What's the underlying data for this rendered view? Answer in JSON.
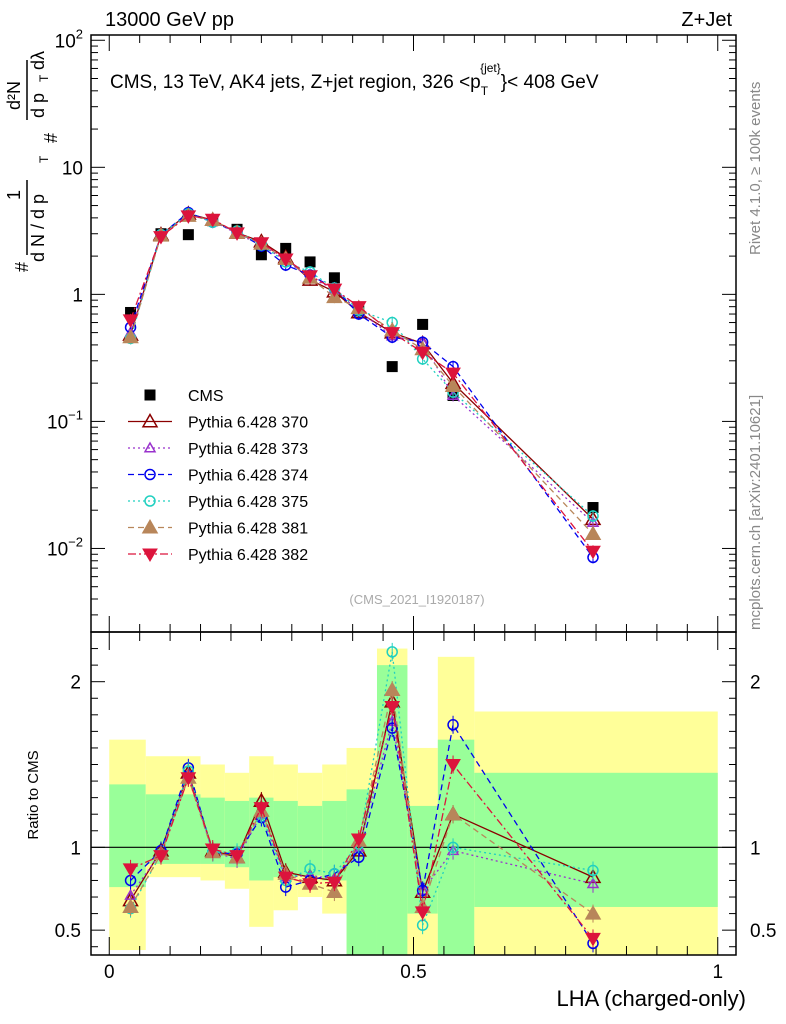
{
  "header": {
    "left": "13000 GeV pp",
    "right": "Z+Jet"
  },
  "side_labels": {
    "rivet": "Rivet 4.1.0, ≥ 100k events",
    "source": "mcplots.cern.ch [arXiv:2401.10621]"
  },
  "colors": {
    "cms": "#000000",
    "p370": "#8b0000",
    "p373": "#9932cc",
    "p374": "#0000ee",
    "p375": "#20d0c0",
    "p381": "#b8865a",
    "p382": "#dc143c",
    "band_inner": "#99ff99",
    "band_outer": "#ffff99"
  },
  "chart_data": [
    {
      "type": "line",
      "scale": "log",
      "title": "CMS, 13 TeV, AK4 jets, Z+jet region, 326 <p_T^{jet}< 408 GeV",
      "title_parts": {
        "prefix": "CMS, 13 TeV, AK4 jets, Z+jet region, 326 <p",
        "sub": "T",
        "sup": "{jet}",
        "suffix": "}< 408 GeV"
      },
      "ylabel": "1/dN/dp_T  d²N/dp_T dλ",
      "ylabel_parts": {
        "hash": "#",
        "one": "1",
        "lower": "d N / d p",
        "sub": "T",
        "upper": "d²N",
        "lower2": "d p",
        "sub2": "T",
        "dl": "dλ"
      },
      "ylim": [
        0.0022,
        110
      ],
      "yticks": [
        {
          "value": 0.01,
          "base": "10",
          "exp": "−2"
        },
        {
          "value": 0.1,
          "base": "10",
          "exp": "−1"
        },
        {
          "value": 1,
          "base": "1",
          "exp": ""
        },
        {
          "value": 10,
          "base": "10",
          "exp": ""
        },
        {
          "value": 100,
          "base": "10",
          "exp": "2"
        }
      ],
      "watermark": "(CMS_2021_I1920187)",
      "x": [
        0.035,
        0.085,
        0.13,
        0.17,
        0.21,
        0.25,
        0.29,
        0.33,
        0.37,
        0.41,
        0.465,
        0.515,
        0.565,
        0.795
      ],
      "series": [
        {
          "name": "CMS",
          "key": "cms",
          "style": "data",
          "values": [
            0.72,
            3.0,
            2.95,
            3.8,
            3.25,
            2.05,
            2.3,
            1.8,
            1.35,
            0.74,
            0.27,
            0.58,
            0.16,
            0.021
          ]
        },
        {
          "name": "Pythia 6.428 370",
          "key": "p370",
          "style": "solid",
          "marker": "tri-up-open",
          "values": [
            0.48,
            2.95,
            4.3,
            3.85,
            3.05,
            2.6,
            1.95,
            1.3,
            1.05,
            0.72,
            0.5,
            0.41,
            0.2,
            0.017
          ]
        },
        {
          "name": "Pythia 6.428 373",
          "key": "p373",
          "style": "dotted",
          "marker": "tri-up-open-small",
          "values": [
            0.5,
            2.9,
            4.25,
            3.8,
            3.0,
            2.45,
            1.85,
            1.35,
            1.1,
            0.74,
            0.47,
            0.42,
            0.16,
            0.016
          ]
        },
        {
          "name": "Pythia 6.428 374",
          "key": "p374",
          "style": "dashed",
          "marker": "circle-open",
          "values": [
            0.55,
            2.95,
            4.4,
            3.7,
            3.1,
            2.4,
            1.7,
            1.42,
            1.12,
            0.7,
            0.46,
            0.42,
            0.27,
            0.0085
          ]
        },
        {
          "name": "Pythia 6.428 375",
          "key": "p375",
          "style": "dotted",
          "marker": "circle-open",
          "values": [
            0.45,
            2.95,
            4.3,
            3.7,
            3.15,
            2.45,
            1.8,
            1.5,
            1.12,
            0.75,
            0.6,
            0.31,
            0.17,
            0.018
          ]
        },
        {
          "name": "Pythia 6.428 381",
          "key": "p381",
          "style": "dashed",
          "marker": "tri-up-filled",
          "values": [
            0.46,
            2.9,
            4.15,
            3.85,
            3.05,
            2.5,
            1.9,
            1.35,
            0.95,
            0.78,
            0.52,
            0.37,
            0.19,
            0.013
          ]
        },
        {
          "name": "Pythia 6.428 382",
          "key": "p382",
          "style": "dashdot",
          "marker": "tri-down-filled",
          "values": [
            0.63,
            2.85,
            4.15,
            3.9,
            3.05,
            2.55,
            1.9,
            1.4,
            1.1,
            0.8,
            0.5,
            0.35,
            0.24,
            0.0095
          ]
        }
      ],
      "legend_position": "center-left"
    },
    {
      "type": "line",
      "ylabel": "Ratio to CMS",
      "xlabel": "LHA (charged-only)",
      "xlim": [
        -0.03,
        1.03
      ],
      "xticks": [
        0,
        0.5,
        1
      ],
      "xtick_labels": [
        "0",
        "0.5",
        "1"
      ],
      "ylim": [
        0.35,
        2.3
      ],
      "yticks": [
        0.5,
        1,
        2
      ],
      "ytick_labels": [
        "0.5",
        "1",
        "2"
      ],
      "reference_line": 1,
      "bands": [
        {
          "x0": 0.0,
          "x1": 0.06,
          "outer": [
            0.38,
            1.65
          ],
          "inner": [
            0.76,
            1.38
          ]
        },
        {
          "x0": 0.06,
          "x1": 0.15,
          "outer": [
            0.82,
            1.55
          ],
          "inner": [
            0.9,
            1.32
          ]
        },
        {
          "x0": 0.15,
          "x1": 0.19,
          "outer": [
            0.8,
            1.5
          ],
          "inner": [
            0.9,
            1.3
          ]
        },
        {
          "x0": 0.19,
          "x1": 0.23,
          "outer": [
            0.75,
            1.45
          ],
          "inner": [
            0.88,
            1.28
          ]
        },
        {
          "x0": 0.23,
          "x1": 0.27,
          "outer": [
            0.52,
            1.55
          ],
          "inner": [
            0.8,
            1.3
          ]
        },
        {
          "x0": 0.27,
          "x1": 0.31,
          "outer": [
            0.62,
            1.5
          ],
          "inner": [
            0.82,
            1.28
          ]
        },
        {
          "x0": 0.31,
          "x1": 0.35,
          "outer": [
            0.7,
            1.45
          ],
          "inner": [
            0.83,
            1.25
          ]
        },
        {
          "x0": 0.35,
          "x1": 0.39,
          "outer": [
            0.6,
            1.5
          ],
          "inner": [
            0.8,
            1.28
          ]
        },
        {
          "x0": 0.39,
          "x1": 0.44,
          "outer": [
            0.35,
            1.6
          ],
          "inner": [
            0.35,
            1.35
          ]
        },
        {
          "x0": 0.44,
          "x1": 0.49,
          "outer": [
            0.35,
            2.2
          ],
          "inner": [
            0.35,
            2.1
          ]
        },
        {
          "x0": 0.49,
          "x1": 0.54,
          "outer": [
            0.35,
            1.6
          ],
          "inner": [
            0.6,
            1.25
          ]
        },
        {
          "x0": 0.54,
          "x1": 0.6,
          "outer": [
            0.35,
            2.15
          ],
          "inner": [
            0.35,
            1.65
          ]
        },
        {
          "x0": 0.6,
          "x1": 1.0,
          "outer": [
            0.35,
            1.82
          ],
          "inner": [
            0.64,
            1.45
          ]
        }
      ],
      "x": [
        0.035,
        0.085,
        0.13,
        0.17,
        0.21,
        0.25,
        0.29,
        0.33,
        0.37,
        0.41,
        0.465,
        0.515,
        0.565,
        0.795
      ],
      "series": [
        {
          "name": "Pythia 6.428 370",
          "key": "p370",
          "style": "solid",
          "marker": "tri-up-open",
          "values": [
            0.68,
            0.98,
            1.45,
            0.98,
            0.94,
            1.28,
            0.85,
            0.82,
            0.8,
            0.98,
            1.88,
            0.73,
            1.2,
            0.82
          ]
        },
        {
          "name": "Pythia 6.428 373",
          "key": "p373",
          "style": "dotted",
          "marker": "tri-up-open-small",
          "values": [
            0.71,
            0.97,
            1.44,
            0.97,
            0.93,
            1.2,
            0.82,
            0.83,
            0.81,
            1.0,
            1.76,
            0.74,
            0.98,
            0.78
          ]
        },
        {
          "name": "Pythia 6.428 374",
          "key": "p374",
          "style": "dashed",
          "marker": "circle-open",
          "values": [
            0.8,
            0.98,
            1.48,
            0.97,
            0.96,
            1.18,
            0.76,
            0.8,
            0.84,
            0.94,
            1.72,
            0.74,
            1.74,
            0.42
          ]
        },
        {
          "name": "Pythia 6.428 375",
          "key": "p375",
          "style": "dotted",
          "marker": "circle-open",
          "values": [
            0.63,
            0.96,
            1.46,
            0.97,
            0.97,
            1.2,
            0.8,
            0.87,
            0.84,
            1.02,
            2.18,
            0.53,
            1.0,
            0.86
          ]
        },
        {
          "name": "Pythia 6.428 381",
          "key": "p381",
          "style": "dashed",
          "marker": "tri-up-filled",
          "values": [
            0.64,
            0.96,
            1.42,
            0.97,
            0.94,
            1.22,
            0.84,
            0.78,
            0.73,
            1.04,
            1.95,
            0.64,
            1.2,
            0.6
          ]
        },
        {
          "name": "Pythia 6.428 382",
          "key": "p382",
          "style": "dashdot",
          "marker": "tri-down-filled",
          "values": [
            0.87,
            0.95,
            1.42,
            0.99,
            0.95,
            1.24,
            0.82,
            0.78,
            0.79,
            1.05,
            1.85,
            0.61,
            1.5,
            0.45
          ]
        }
      ]
    }
  ]
}
